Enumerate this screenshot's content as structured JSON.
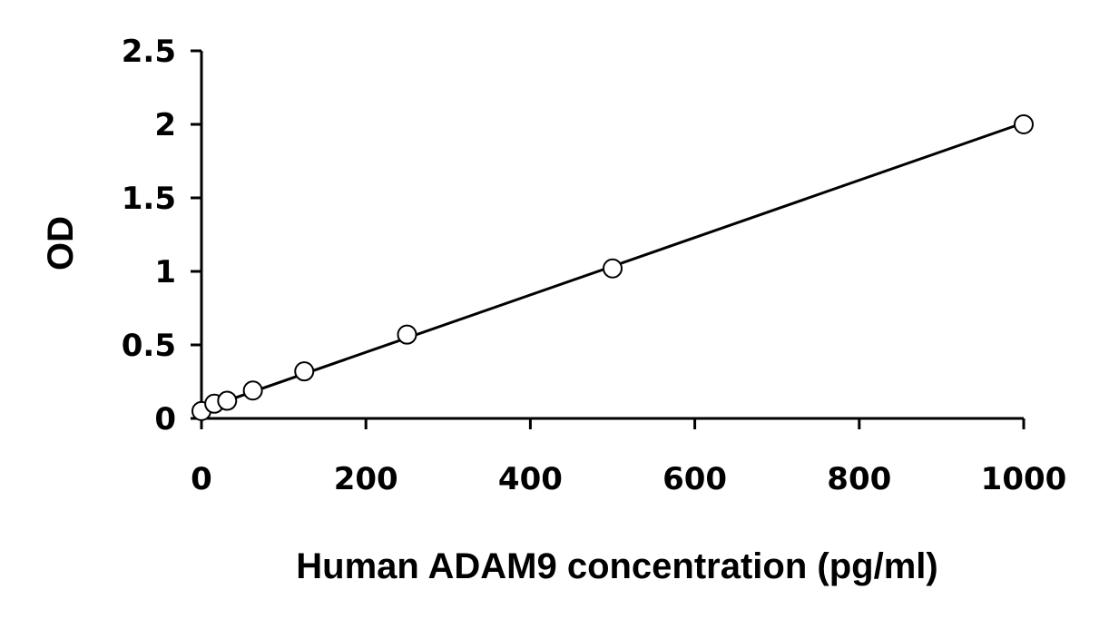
{
  "chart_data": {
    "type": "scatter",
    "title": "",
    "xlabel": "Human ADAM9 concentration (pg/ml)",
    "ylabel": "OD",
    "xlim": [
      0,
      1000
    ],
    "ylim": [
      0,
      2.5
    ],
    "x_ticks": [
      0,
      200,
      400,
      600,
      800,
      1000
    ],
    "y_ticks": [
      0,
      0.5,
      1,
      1.5,
      2,
      2.5
    ],
    "x_tick_labels": [
      "0",
      "200",
      "400",
      "600",
      "800",
      "1000"
    ],
    "y_tick_labels": [
      "0",
      "0.5",
      "1",
      "1.5",
      "2",
      "2.5"
    ],
    "grid": false,
    "legend": "none",
    "series": [
      {
        "marker": "open-circle",
        "x": [
          0,
          15.6,
          31.25,
          62.5,
          125,
          250,
          500,
          1000
        ],
        "y": [
          0.05,
          0.1,
          0.12,
          0.19,
          0.32,
          0.57,
          1.02,
          2.0
        ]
      }
    ],
    "trendline": {
      "type": "linear",
      "x": [
        0,
        1000
      ],
      "y": [
        0.06,
        2.01
      ]
    },
    "colors": {
      "axis": "#000000",
      "line": "#000000",
      "marker_fill": "#ffffff"
    }
  }
}
